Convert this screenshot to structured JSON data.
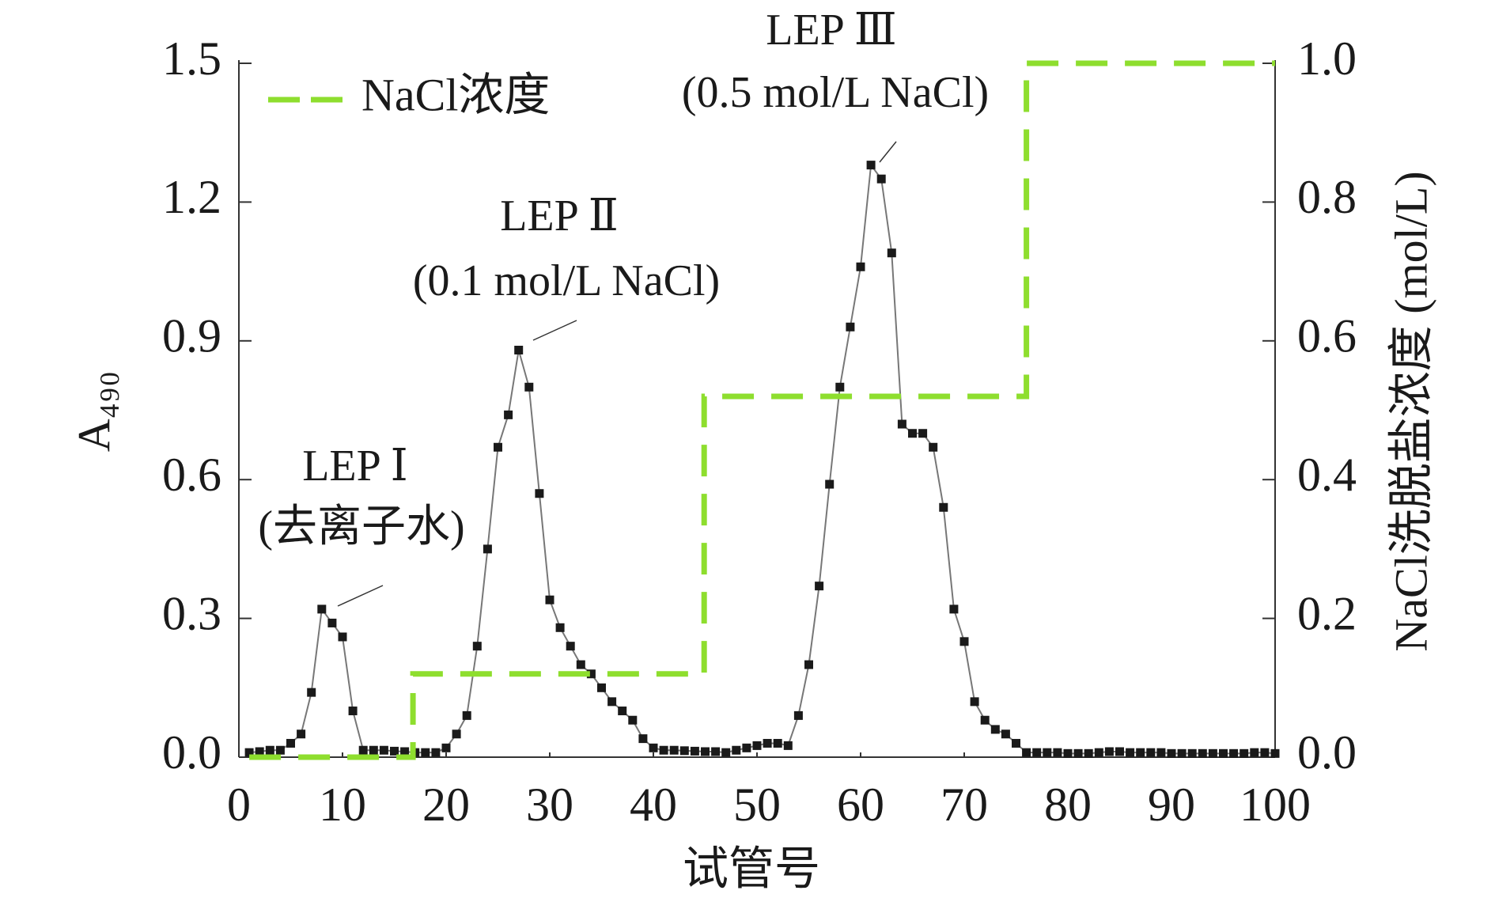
{
  "chart_data": {
    "type": "line",
    "xlabel": "试管号",
    "ylabel": "A₄₉₀",
    "y2label": "NaCl洗脱盐浓度 (mol/L)",
    "xlim": [
      0,
      100
    ],
    "xticks": [
      0,
      10,
      20,
      30,
      40,
      50,
      60,
      70,
      80,
      90,
      100
    ],
    "ylim": [
      0,
      1.5
    ],
    "yticks": [
      {
        "value": 0,
        "label": "0.0"
      },
      0.3,
      0.6,
      0.9,
      1.2,
      1.5
    ],
    "y2lim": [
      0,
      1.0
    ],
    "y2ticks": [
      {
        "value": 0,
        "label": "0.0"
      },
      0.2,
      0.4,
      0.6,
      0.8,
      {
        "value": 1.0,
        "label": "1.0"
      }
    ],
    "legend": "top-left",
    "annotations": [
      "LEP Ⅰ",
      "(去离子水)",
      "LEP Ⅱ",
      "(0.1 mol/L NaCl)",
      "LEP Ⅲ",
      "(0.5 mol/L NaCl)"
    ],
    "series": [
      {
        "color": "#1a1a1a",
        "markers": true,
        "x": [
          1,
          2,
          3,
          4,
          5,
          6,
          7,
          8,
          9,
          10,
          11,
          12,
          13,
          14,
          15,
          16,
          17,
          18,
          19,
          20,
          21,
          22,
          23,
          24,
          25,
          26,
          27,
          28,
          29,
          30,
          31,
          32,
          33,
          34,
          35,
          36,
          37,
          38,
          39,
          40,
          41,
          42,
          43,
          44,
          45,
          46,
          47,
          48,
          49,
          50,
          51,
          52,
          53,
          54,
          55,
          56,
          57,
          58,
          59,
          60,
          61,
          62,
          63,
          64,
          65,
          66,
          67,
          68,
          69,
          70,
          71,
          72,
          73,
          74,
          75,
          76,
          77,
          78,
          79,
          80,
          81,
          82,
          83,
          84,
          85,
          86,
          87,
          88,
          89,
          90,
          91,
          92,
          93,
          94,
          95,
          96,
          97,
          98,
          99,
          100
        ],
        "values": [
          0.01,
          0.012,
          0.015,
          0.015,
          0.03,
          0.05,
          0.14,
          0.32,
          0.29,
          0.26,
          0.1,
          0.015,
          0.015,
          0.015,
          0.013,
          0.012,
          0.01,
          0.01,
          0.01,
          0.02,
          0.05,
          0.09,
          0.24,
          0.45,
          0.67,
          0.74,
          0.88,
          0.8,
          0.57,
          0.34,
          0.28,
          0.24,
          0.2,
          0.18,
          0.15,
          0.12,
          0.1,
          0.08,
          0.04,
          0.02,
          0.015,
          0.015,
          0.014,
          0.013,
          0.012,
          0.012,
          0.01,
          0.015,
          0.02,
          0.025,
          0.03,
          0.03,
          0.025,
          0.09,
          0.2,
          0.37,
          0.59,
          0.8,
          0.93,
          1.06,
          1.28,
          1.25,
          1.09,
          0.72,
          0.7,
          0.7,
          0.67,
          0.54,
          0.32,
          0.25,
          0.12,
          0.08,
          0.06,
          0.05,
          0.03,
          0.01,
          0.01,
          0.01,
          0.01,
          0.008,
          0.008,
          0.008,
          0.01,
          0.012,
          0.012,
          0.01,
          0.01,
          0.01,
          0.01,
          0.008,
          0.008,
          0.008,
          0.008,
          0.008,
          0.008,
          0.008,
          0.008,
          0.01,
          0.01,
          0.008
        ]
      },
      {
        "name": "NaCl浓度",
        "color": "#8ede2e",
        "axis": "y2",
        "dash": true,
        "x": [
          1,
          16.8,
          16.8,
          44.9,
          44.9,
          76,
          76,
          100
        ],
        "values": [
          0,
          0,
          0.12,
          0.12,
          0.52,
          0.52,
          1.0,
          1.0
        ]
      }
    ]
  }
}
